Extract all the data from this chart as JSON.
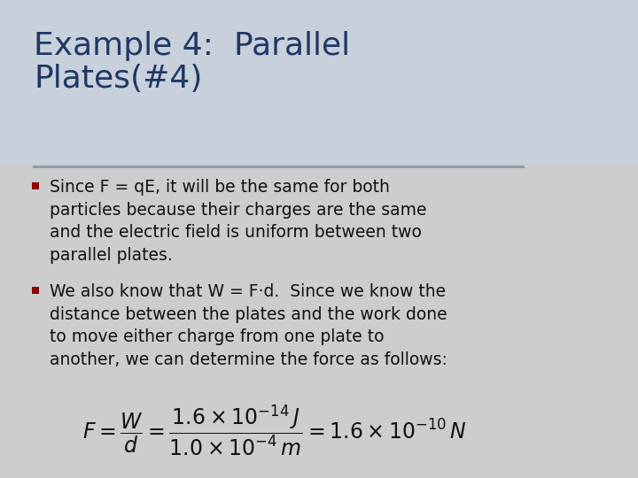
{
  "title_line1": "Example 4:  Parallel",
  "title_line2": "Plates(#4)",
  "title_color": "#1F3864",
  "title_fontsize": 26,
  "background_color": "#CDCDCD",
  "title_bg_color": "#C8D0DC",
  "divider_color": "#8899AA",
  "bullet_color": "#8B0000",
  "text_color": "#111111",
  "bullet1": "Since F = qE, it will be the same for both\nparticles because their charges are the same\nand the electric field is uniform between two\nparallel plates.",
  "bullet2": "We also know that W = F·d.  Since we know the\ndistance between the plates and the work done\nto move either charge from one plate to\nanother, we can determine the force as follows:",
  "formula": "$F = \\dfrac{W}{d} = \\dfrac{1.6\\times10^{-14}\\,J}{1.0\\times10^{-4}\\,m} = 1.6\\times10^{-10}\\,N$",
  "text_fontsize": 13.5,
  "formula_fontsize": 17
}
